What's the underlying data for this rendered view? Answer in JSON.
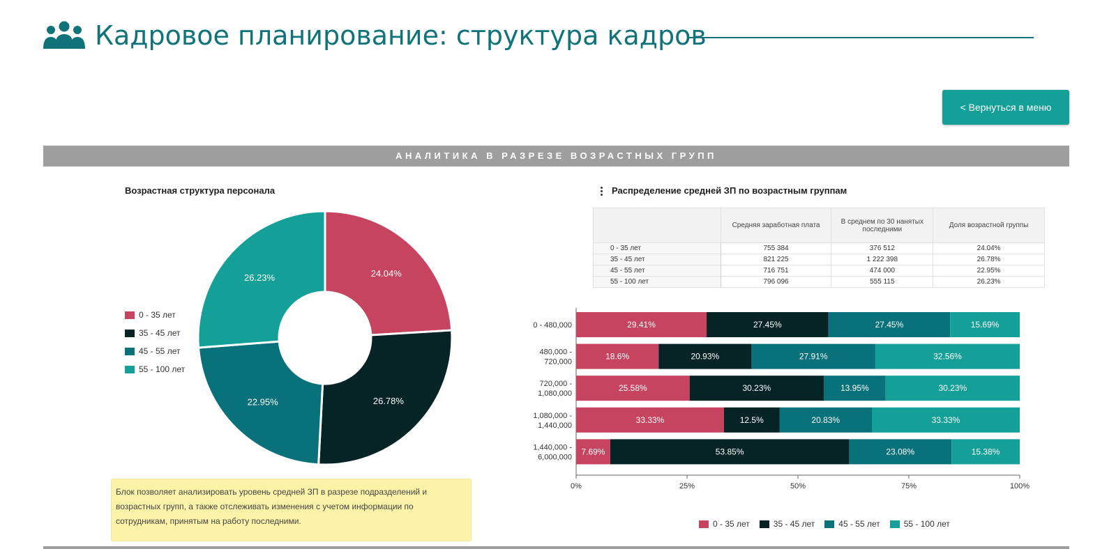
{
  "page": {
    "title": "Кадровое планирование: структура кадров"
  },
  "header": {
    "icon": "people-group-icon"
  },
  "nav": {
    "back_label": "< Вернуться в меню"
  },
  "section": {
    "title": "АНАЛИТИКА В РАЗРЕЗЕ ВОЗРАСТНЫХ ГРУПП"
  },
  "colors": {
    "accent": "#11737a",
    "button": "#14a098",
    "c1": "#c6445f",
    "c2": "#062326",
    "c3": "#08717a",
    "c4": "#14a098"
  },
  "age_groups": [
    "0 - 35 лет",
    "35 - 45 лет",
    "45 - 55 лет",
    "55 - 100 лет"
  ],
  "donut": {
    "title": "Возрастная структура персонала",
    "slices": [
      {
        "label": "0 - 35 лет",
        "value": 24.04,
        "display": "24.04%"
      },
      {
        "label": "35 - 45 лет",
        "value": 26.78,
        "display": "26.78%"
      },
      {
        "label": "45 - 55 лет",
        "value": 22.95,
        "display": "22.95%"
      },
      {
        "label": "55 - 100 лет",
        "value": 26.23,
        "display": "26.23%"
      }
    ]
  },
  "note": {
    "text": "Блок позволяет анализировать уровень средней ЗП в разрезе подразделений и возрастных групп, а также отслеживать изменения с учетом информации по сотрудникам, принятым на работу последними."
  },
  "salary": {
    "title": "Распределение средней ЗП по возрастным группам",
    "headers": [
      "",
      "Средняя заработная плата",
      "В среднем по 30 нанятых последними",
      "Доля возрастной группы"
    ],
    "rows": [
      [
        "0 - 35 лет",
        "755 384",
        "376 512",
        "24.04%"
      ],
      [
        "35 - 45 лет",
        "821 225",
        "1 222 398",
        "26.78%"
      ],
      [
        "45 - 55 лет",
        "716 751",
        "474 000",
        "22.95%"
      ],
      [
        "55 - 100 лет",
        "796 096",
        "555 115",
        "26.23%"
      ]
    ]
  },
  "chart_data": {
    "type": "bar",
    "orientation": "horizontal",
    "stacked": "percent",
    "categories": [
      [
        "0 - 480,000"
      ],
      [
        "480,000 -",
        "720,000"
      ],
      [
        "720,000 -",
        "1,080,000"
      ],
      [
        "1,080,000 -",
        "1,440,000"
      ],
      [
        "1,440,000 -",
        "6,000,000"
      ]
    ],
    "series": [
      {
        "name": "0 - 35 лет",
        "values": [
          29.41,
          18.6,
          25.58,
          33.33,
          7.69
        ],
        "labels": [
          "29.41%",
          "18.6%",
          "25.58%",
          "33.33%",
          "7.69%"
        ]
      },
      {
        "name": "35 - 45 лет",
        "values": [
          27.45,
          20.93,
          30.23,
          12.5,
          53.85
        ],
        "labels": [
          "27.45%",
          "20.93%",
          "30.23%",
          "12.5%",
          "53.85%"
        ]
      },
      {
        "name": "45 - 55 лет",
        "values": [
          27.45,
          27.91,
          13.95,
          20.83,
          23.08
        ],
        "labels": [
          "27.45%",
          "27.91%",
          "13.95%",
          "20.83%",
          "23.08%"
        ]
      },
      {
        "name": "55 - 100 лет",
        "values": [
          15.69,
          32.56,
          30.23,
          33.33,
          15.38
        ],
        "labels": [
          "15.69%",
          "32.56%",
          "30.23%",
          "33.33%",
          "15.38%"
        ]
      }
    ],
    "xlim": [
      0,
      100
    ],
    "xticks": [
      "0%",
      "25%",
      "50%",
      "75%",
      "100%"
    ],
    "legend_position": "bottom"
  }
}
